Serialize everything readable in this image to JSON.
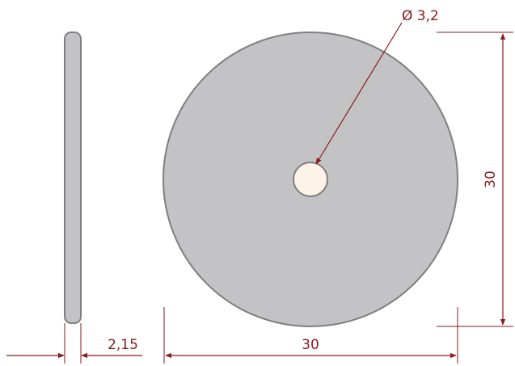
{
  "drawing": {
    "hole_diameter_label": "Ø 3,2",
    "height_label": "30",
    "width_label": "30",
    "thickness_label": "2,15"
  },
  "colors": {
    "part_fill": "#c3c3c5",
    "part_stroke": "#7f7f82",
    "hole_fill": "#fdf3e6",
    "dimension": "#8b1a1a"
  }
}
